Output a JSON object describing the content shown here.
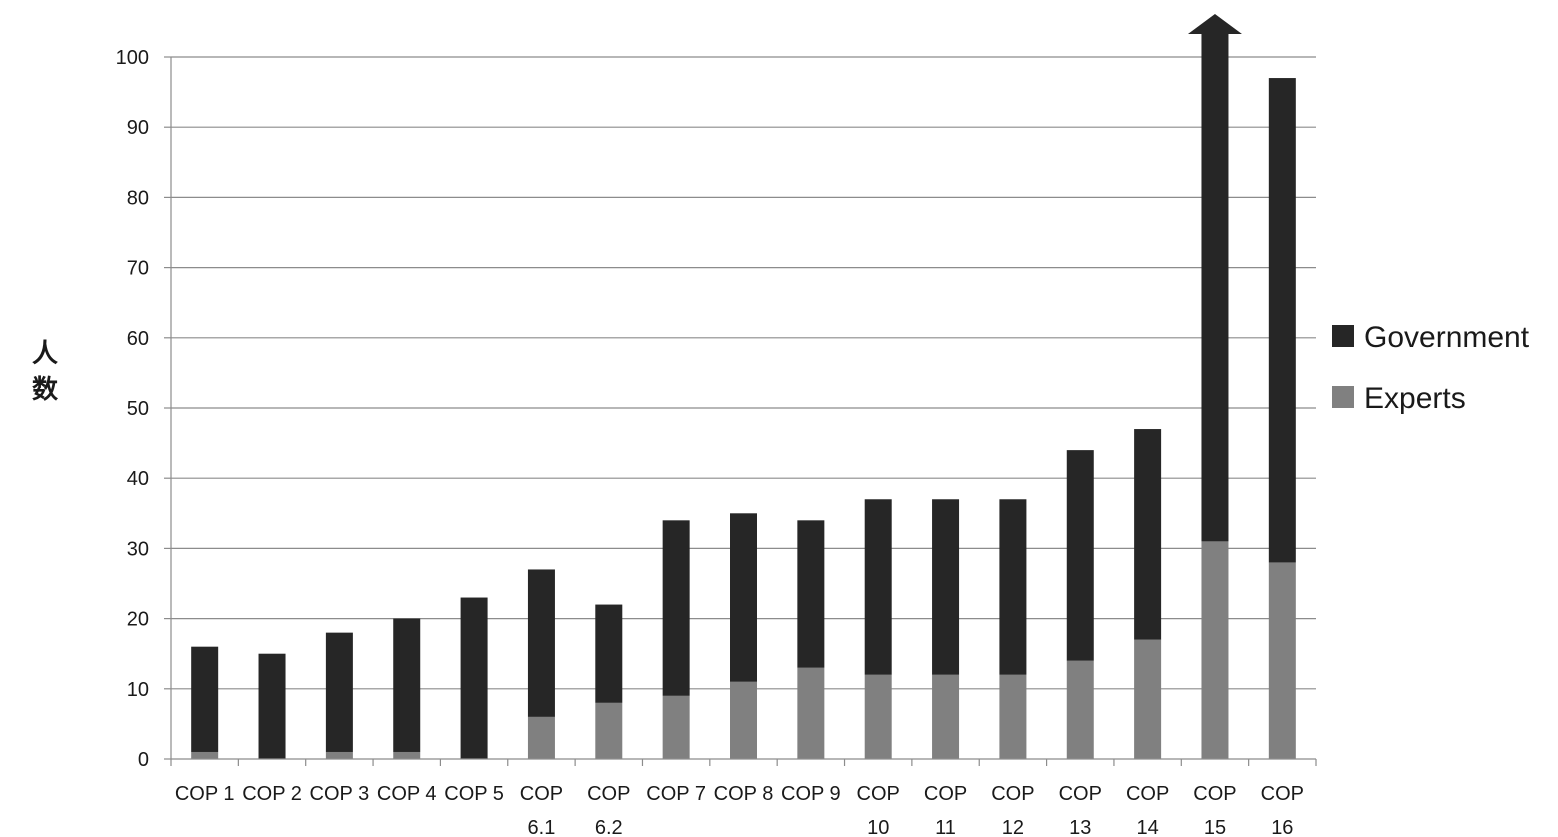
{
  "chart_data": {
    "type": "bar",
    "stacked": true,
    "title": "",
    "ylabel": "人数",
    "xlabel": "",
    "ylim": [
      0,
      100
    ],
    "yticks": [
      0,
      10,
      20,
      30,
      40,
      50,
      60,
      70,
      80,
      90,
      100
    ],
    "grid": true,
    "legend_position": "right",
    "categories": [
      [
        "COP 1"
      ],
      [
        "COP 2"
      ],
      [
        "COP 3"
      ],
      [
        "COP 4"
      ],
      [
        "COP 5"
      ],
      [
        "COP",
        "6.1"
      ],
      [
        "COP",
        "6.2"
      ],
      [
        "COP 7"
      ],
      [
        "COP 8"
      ],
      [
        "COP 9"
      ],
      [
        "COP",
        "10"
      ],
      [
        "COP",
        "11"
      ],
      [
        "COP",
        "12"
      ],
      [
        "COP",
        "13"
      ],
      [
        "COP",
        "14"
      ],
      [
        "COP",
        "15"
      ],
      [
        "COP",
        "16"
      ]
    ],
    "series": [
      {
        "name": "Experts",
        "color": "#808080",
        "values": [
          1,
          0,
          1,
          1,
          0,
          6,
          8,
          9,
          11,
          13,
          12,
          12,
          12,
          14,
          17,
          31,
          28
        ]
      },
      {
        "name": "Government",
        "color": "#262626",
        "values": [
          15,
          15,
          17,
          19,
          23,
          21,
          14,
          25,
          24,
          21,
          25,
          25,
          25,
          30,
          30,
          69,
          69
        ]
      }
    ],
    "annotations": [
      {
        "type": "arrow-up",
        "category_index": 15,
        "note_shape": "upward arrow indicating value exceeds axis"
      }
    ]
  }
}
